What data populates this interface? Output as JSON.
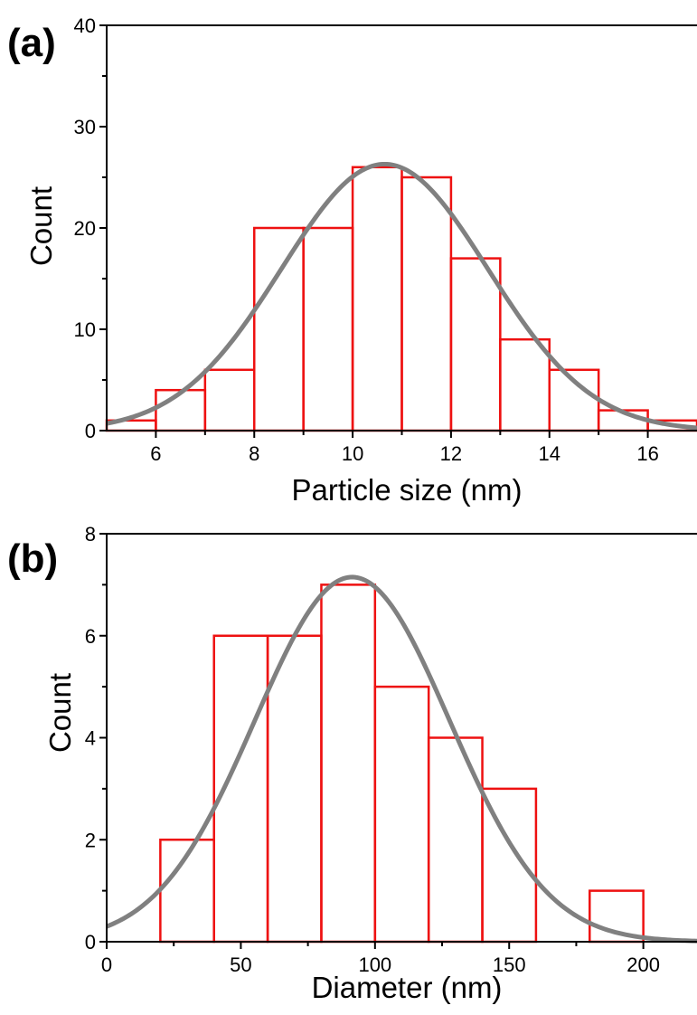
{
  "chart_data": [
    {
      "panel_label": "(a)",
      "type": "bar",
      "xlabel": "Particle size (nm)",
      "ylabel": "Count",
      "xlim": [
        5,
        17
      ],
      "ylim": [
        0,
        40
      ],
      "x_ticks": [
        6,
        8,
        10,
        12,
        14,
        16
      ],
      "x_tick_labels": [
        "6",
        "8",
        "10",
        "12",
        "14",
        "16"
      ],
      "y_ticks": [
        0,
        10,
        20,
        30,
        40
      ],
      "y_tick_labels": [
        "0",
        "10",
        "20",
        "30",
        "40"
      ],
      "bins": [
        {
          "x0": 5,
          "x1": 6,
          "count": 1
        },
        {
          "x0": 6,
          "x1": 7,
          "count": 4
        },
        {
          "x0": 7,
          "x1": 8,
          "count": 6
        },
        {
          "x0": 8,
          "x1": 9,
          "count": 20
        },
        {
          "x0": 9,
          "x1": 10,
          "count": 20
        },
        {
          "x0": 10,
          "x1": 11,
          "count": 26
        },
        {
          "x0": 11,
          "x1": 12,
          "count": 25
        },
        {
          "x0": 12,
          "x1": 13,
          "count": 17
        },
        {
          "x0": 13,
          "x1": 14,
          "count": 9
        },
        {
          "x0": 14,
          "x1": 15,
          "count": 6
        },
        {
          "x0": 15,
          "x1": 16,
          "count": 2
        },
        {
          "x0": 16,
          "x1": 17,
          "count": 1
        }
      ],
      "fit_curve": {
        "type": "gaussian",
        "peak_x": 10.65,
        "peak_y": 26.3,
        "sigma": 2.1
      },
      "bar_color": "#ee1111",
      "curve_color": "#808080"
    },
    {
      "panel_label": "(b)",
      "type": "bar",
      "xlabel": "Diameter (nm)",
      "ylabel": "Count",
      "xlim": [
        0,
        220
      ],
      "ylim": [
        0,
        8
      ],
      "x_ticks": [
        0,
        50,
        100,
        150,
        200
      ],
      "x_tick_labels": [
        "0",
        "50",
        "100",
        "150",
        "200"
      ],
      "y_ticks": [
        0,
        2,
        4,
        6,
        8
      ],
      "y_tick_labels": [
        "0",
        "2",
        "4",
        "6",
        "8"
      ],
      "bins": [
        {
          "x0": 20,
          "x1": 40,
          "count": 2
        },
        {
          "x0": 40,
          "x1": 60,
          "count": 6
        },
        {
          "x0": 60,
          "x1": 80,
          "count": 6
        },
        {
          "x0": 80,
          "x1": 100,
          "count": 7
        },
        {
          "x0": 100,
          "x1": 120,
          "count": 5
        },
        {
          "x0": 120,
          "x1": 140,
          "count": 4
        },
        {
          "x0": 140,
          "x1": 160,
          "count": 3
        },
        {
          "x0": 180,
          "x1": 200,
          "count": 1
        }
      ],
      "fit_curve": {
        "type": "gaussian",
        "peak_x": 91.5,
        "peak_y": 7.15,
        "sigma": 36.3
      },
      "bar_color": "#ee1111",
      "curve_color": "#808080"
    }
  ]
}
